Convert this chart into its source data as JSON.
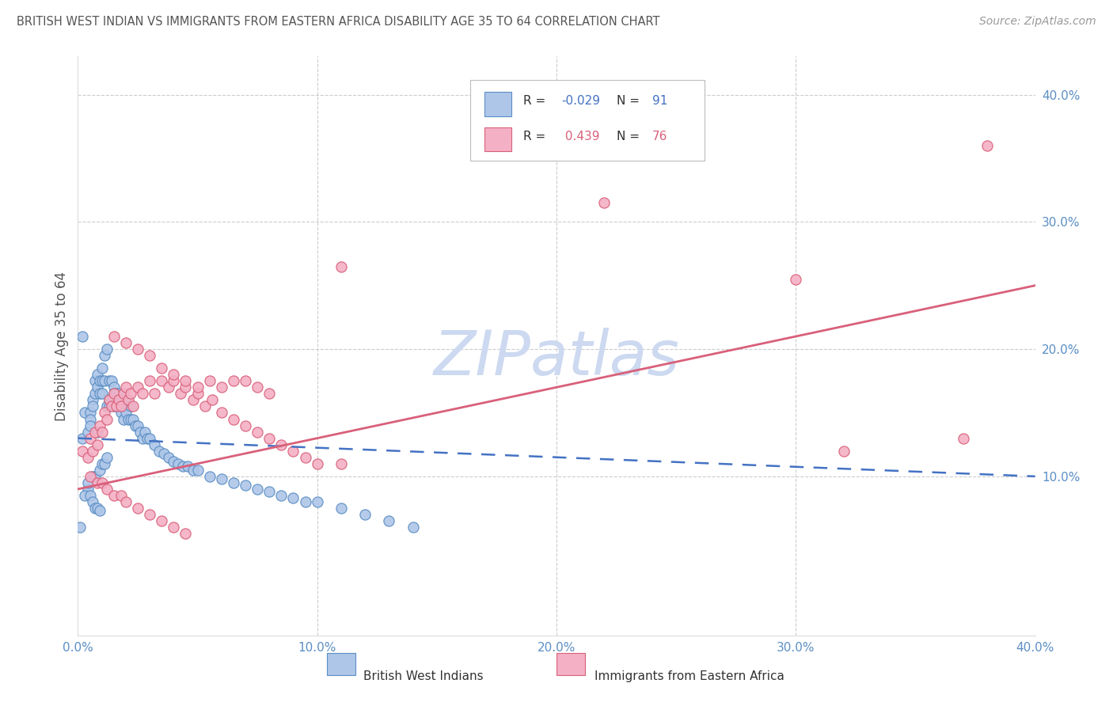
{
  "title": "BRITISH WEST INDIAN VS IMMIGRANTS FROM EASTERN AFRICA DISABILITY AGE 35 TO 64 CORRELATION CHART",
  "source": "Source: ZipAtlas.com",
  "ylabel": "Disability Age 35 to 64",
  "xlim": [
    0.0,
    0.4
  ],
  "ylim": [
    -0.025,
    0.43
  ],
  "xticks": [
    0.0,
    0.1,
    0.2,
    0.3,
    0.4
  ],
  "xticklabels": [
    "0.0%",
    "10.0%",
    "20.0%",
    "30.0%",
    "40.0%"
  ],
  "yticks_right": [
    0.1,
    0.2,
    0.3,
    0.4
  ],
  "yticklabels_right": [
    "10.0%",
    "20.0%",
    "30.0%",
    "40.0%"
  ],
  "color_bwi_fill": "#aec6e8",
  "color_bwi_edge": "#5b8ec4",
  "color_efa_fill": "#f4b0c5",
  "color_efa_edge": "#d9607a",
  "color_bwi_line": "#4472c4",
  "color_efa_line": "#d9607a",
  "background_color": "#ffffff",
  "grid_color": "#cccccc",
  "title_color": "#555555",
  "source_color": "#999999",
  "axis_label_color": "#5b8ec4",
  "watermark_color": "#ccd9f0",
  "bwi_x": [
    0.001,
    0.002,
    0.003,
    0.004,
    0.004,
    0.005,
    0.005,
    0.005,
    0.006,
    0.006,
    0.006,
    0.007,
    0.007,
    0.007,
    0.008,
    0.008,
    0.008,
    0.009,
    0.009,
    0.009,
    0.01,
    0.01,
    0.01,
    0.01,
    0.011,
    0.011,
    0.011,
    0.012,
    0.012,
    0.012,
    0.013,
    0.013,
    0.013,
    0.014,
    0.014,
    0.015,
    0.015,
    0.015,
    0.016,
    0.016,
    0.017,
    0.017,
    0.018,
    0.018,
    0.019,
    0.019,
    0.02,
    0.02,
    0.021,
    0.022,
    0.022,
    0.023,
    0.024,
    0.025,
    0.026,
    0.027,
    0.028,
    0.029,
    0.03,
    0.032,
    0.034,
    0.036,
    0.038,
    0.04,
    0.042,
    0.044,
    0.046,
    0.048,
    0.05,
    0.055,
    0.06,
    0.065,
    0.07,
    0.075,
    0.08,
    0.085,
    0.09,
    0.095,
    0.1,
    0.11,
    0.12,
    0.13,
    0.14,
    0.002,
    0.003,
    0.004,
    0.005,
    0.006,
    0.007,
    0.008,
    0.009
  ],
  "bwi_y": [
    0.06,
    0.13,
    0.15,
    0.135,
    0.09,
    0.15,
    0.145,
    0.14,
    0.16,
    0.155,
    0.1,
    0.175,
    0.165,
    0.1,
    0.18,
    0.17,
    0.135,
    0.175,
    0.165,
    0.105,
    0.185,
    0.175,
    0.165,
    0.11,
    0.195,
    0.175,
    0.11,
    0.2,
    0.155,
    0.115,
    0.175,
    0.16,
    0.155,
    0.175,
    0.16,
    0.17,
    0.165,
    0.155,
    0.165,
    0.155,
    0.165,
    0.155,
    0.16,
    0.15,
    0.155,
    0.145,
    0.16,
    0.15,
    0.145,
    0.155,
    0.145,
    0.145,
    0.14,
    0.14,
    0.135,
    0.13,
    0.135,
    0.13,
    0.13,
    0.125,
    0.12,
    0.118,
    0.115,
    0.112,
    0.11,
    0.108,
    0.108,
    0.105,
    0.105,
    0.1,
    0.098,
    0.095,
    0.093,
    0.09,
    0.088,
    0.085,
    0.083,
    0.08,
    0.08,
    0.075,
    0.07,
    0.065,
    0.06,
    0.21,
    0.085,
    0.095,
    0.085,
    0.08,
    0.075,
    0.075,
    0.073
  ],
  "efa_x": [
    0.002,
    0.004,
    0.005,
    0.006,
    0.007,
    0.008,
    0.009,
    0.01,
    0.011,
    0.012,
    0.013,
    0.014,
    0.015,
    0.016,
    0.017,
    0.018,
    0.019,
    0.02,
    0.021,
    0.022,
    0.023,
    0.025,
    0.027,
    0.03,
    0.032,
    0.035,
    0.038,
    0.04,
    0.043,
    0.045,
    0.048,
    0.05,
    0.053,
    0.056,
    0.06,
    0.065,
    0.07,
    0.075,
    0.08,
    0.085,
    0.09,
    0.095,
    0.1,
    0.11,
    0.015,
    0.02,
    0.025,
    0.03,
    0.035,
    0.04,
    0.045,
    0.05,
    0.055,
    0.06,
    0.065,
    0.07,
    0.075,
    0.08,
    0.005,
    0.008,
    0.01,
    0.012,
    0.015,
    0.018,
    0.02,
    0.025,
    0.03,
    0.035,
    0.04,
    0.045,
    0.11,
    0.3,
    0.38,
    0.22,
    0.32,
    0.37
  ],
  "efa_y": [
    0.12,
    0.115,
    0.13,
    0.12,
    0.135,
    0.125,
    0.14,
    0.135,
    0.15,
    0.145,
    0.16,
    0.155,
    0.165,
    0.155,
    0.16,
    0.155,
    0.165,
    0.17,
    0.16,
    0.165,
    0.155,
    0.17,
    0.165,
    0.175,
    0.165,
    0.175,
    0.17,
    0.175,
    0.165,
    0.17,
    0.16,
    0.165,
    0.155,
    0.16,
    0.15,
    0.145,
    0.14,
    0.135,
    0.13,
    0.125,
    0.12,
    0.115,
    0.11,
    0.11,
    0.21,
    0.205,
    0.2,
    0.195,
    0.185,
    0.18,
    0.175,
    0.17,
    0.175,
    0.17,
    0.175,
    0.175,
    0.17,
    0.165,
    0.1,
    0.095,
    0.095,
    0.09,
    0.085,
    0.085,
    0.08,
    0.075,
    0.07,
    0.065,
    0.06,
    0.055,
    0.265,
    0.255,
    0.36,
    0.315,
    0.12,
    0.13
  ]
}
